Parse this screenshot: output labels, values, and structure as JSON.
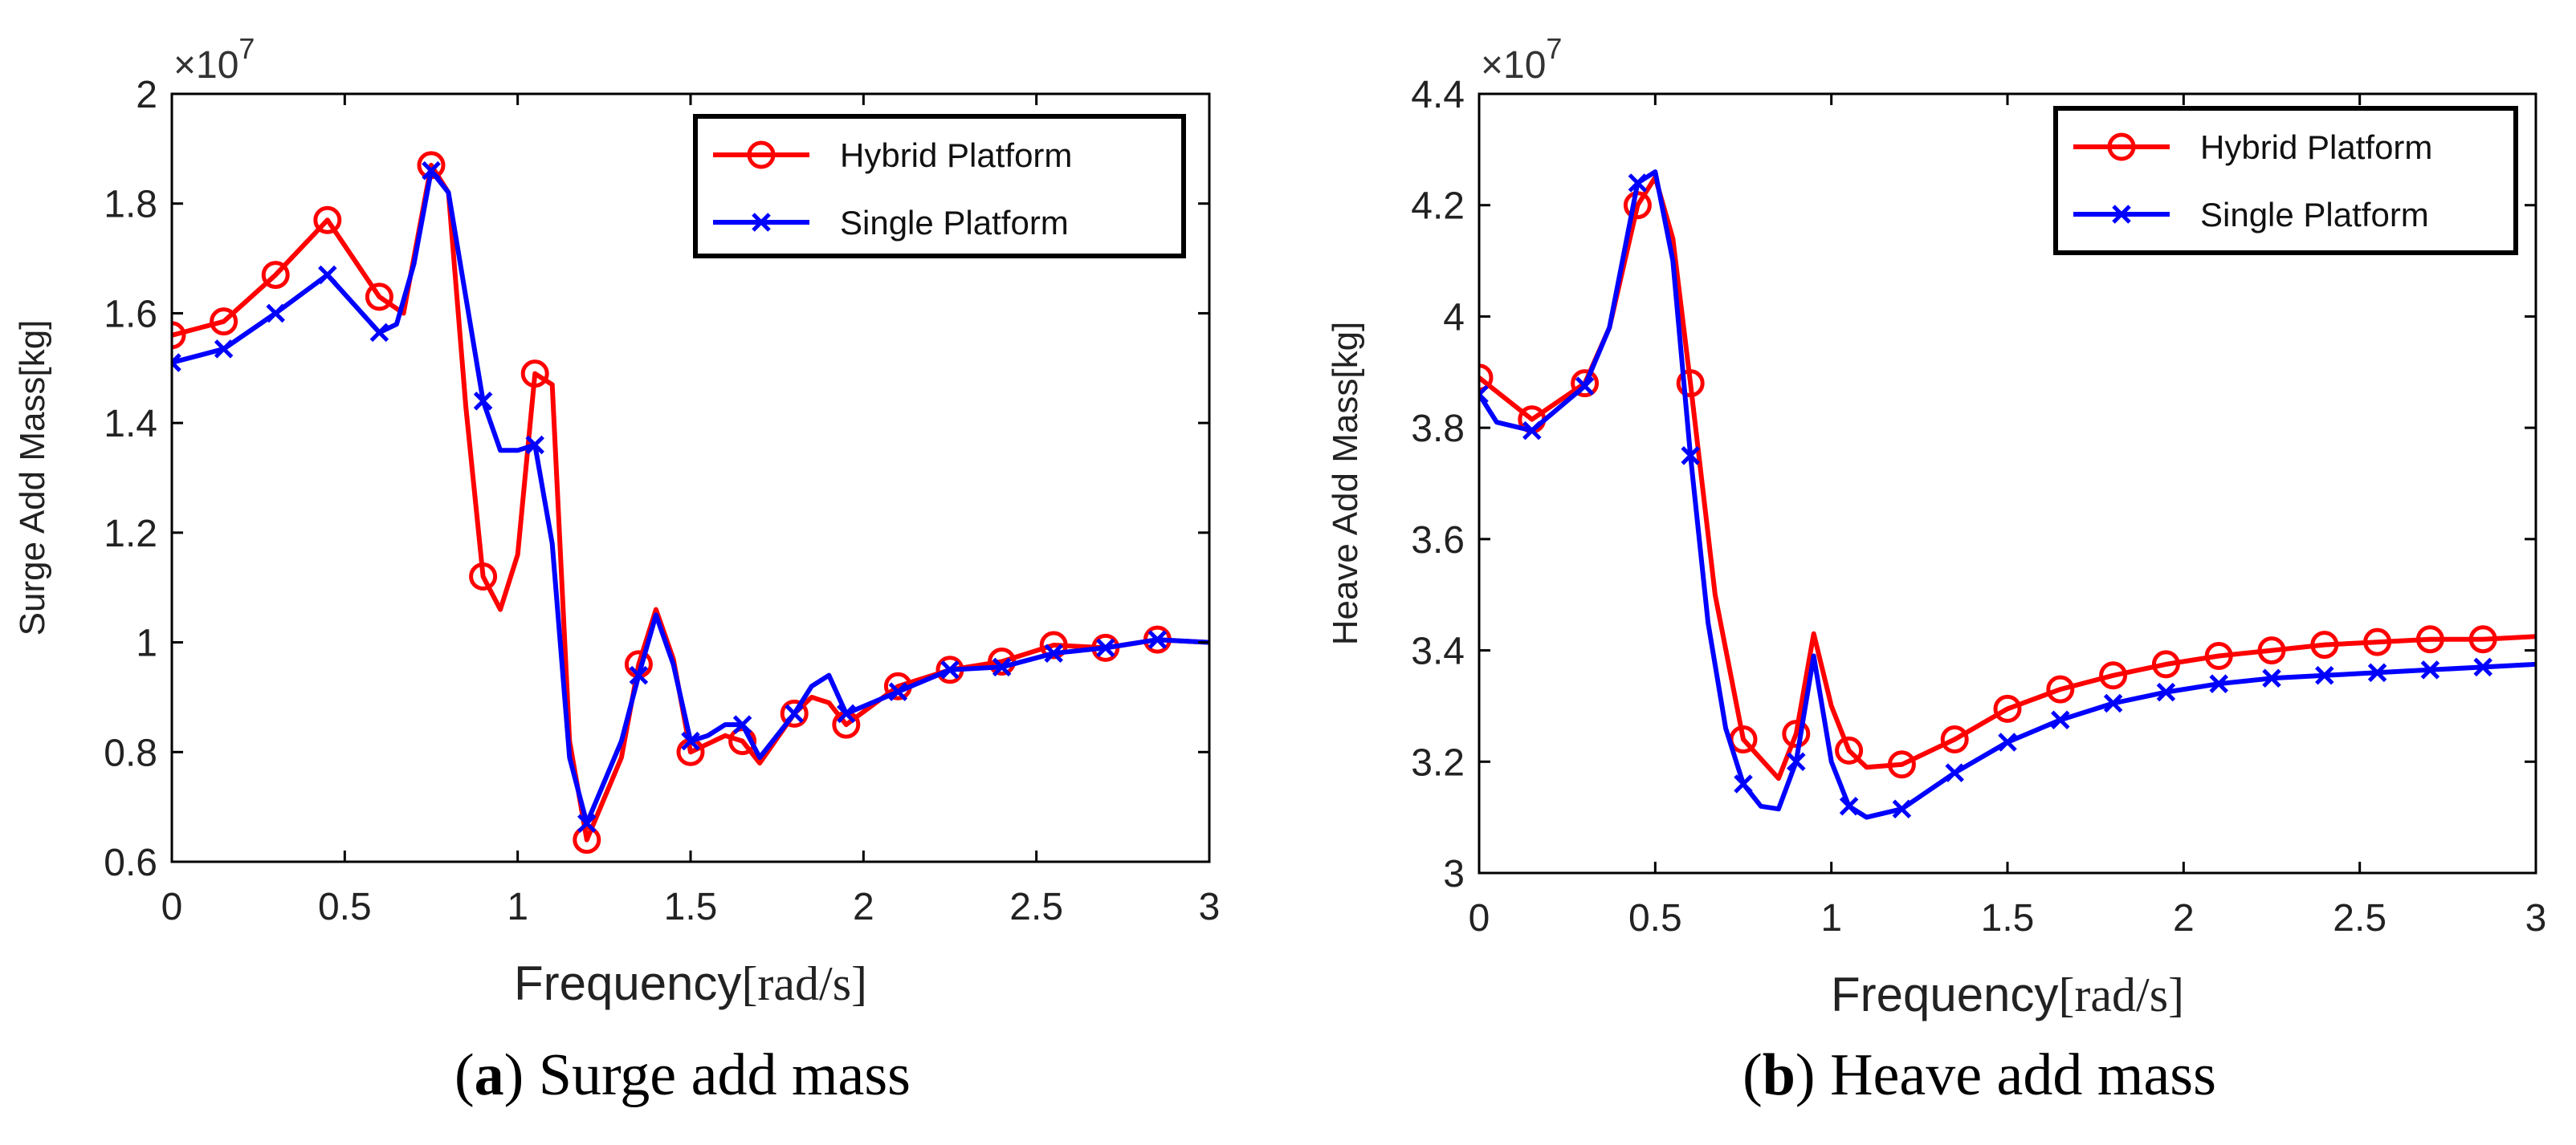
{
  "colors": {
    "hybrid": "#ff0000",
    "single": "#0000ff",
    "axis": "#000000"
  },
  "captions": [
    {
      "label": "a",
      "text": "Surge add mass",
      "open": "(",
      "close": ")"
    },
    {
      "label": "b",
      "text": "Heave add mass",
      "open": "(",
      "close": ")"
    }
  ],
  "chart_data": [
    {
      "type": "line",
      "title": "",
      "xlabel": "Frequency",
      "xlabel_unit": "[rad/s]",
      "ylabel": "Surge Add Mass[kg]",
      "exponent_base": "×10",
      "exponent_power": "7",
      "xlim": [
        0,
        3
      ],
      "ylim": [
        0.6,
        2.0
      ],
      "xticks": [
        0,
        0.5,
        1,
        1.5,
        2,
        2.5,
        3
      ],
      "xtick_labels": [
        "0",
        "0.5",
        "1",
        "1.5",
        "2",
        "2.5",
        "3"
      ],
      "yticks": [
        0.6,
        0.8,
        1.0,
        1.2,
        1.4,
        1.6,
        1.8,
        2.0
      ],
      "ytick_labels": [
        "0.6",
        "0.8",
        "1",
        "1.2",
        "1.4",
        "1.6",
        "1.8",
        "2"
      ],
      "legend_position": "top-right",
      "series": [
        {
          "name": "Hybrid Platform",
          "marker": "circle",
          "x": [
            0,
            0.15,
            0.3,
            0.45,
            0.6,
            0.67,
            0.75,
            0.8,
            0.85,
            0.9,
            0.95,
            1.0,
            1.05,
            1.1,
            1.15,
            1.2,
            1.3,
            1.35,
            1.4,
            1.45,
            1.5,
            1.6,
            1.65,
            1.7,
            1.8,
            1.85,
            1.9,
            1.95,
            2.1,
            2.25,
            2.4,
            2.55,
            2.7,
            2.85,
            3.0
          ],
          "y": [
            1.56,
            1.585,
            1.67,
            1.77,
            1.63,
            1.6,
            1.87,
            1.82,
            1.43,
            1.12,
            1.06,
            1.16,
            1.49,
            1.47,
            0.82,
            0.64,
            0.79,
            0.96,
            1.06,
            0.97,
            0.8,
            0.83,
            0.82,
            0.78,
            0.87,
            0.9,
            0.89,
            0.85,
            0.92,
            0.95,
            0.965,
            0.995,
            0.99,
            1.005,
            1.0
          ],
          "markers_x": [
            0,
            0.15,
            0.3,
            0.45,
            0.6,
            0.75,
            0.9,
            1.05,
            1.2,
            1.35,
            1.5,
            1.65,
            1.8,
            1.95,
            2.1,
            2.25,
            2.4,
            2.55,
            2.7,
            2.85
          ],
          "markers_y": [
            1.56,
            1.585,
            1.67,
            1.77,
            1.63,
            1.87,
            1.12,
            1.49,
            0.64,
            0.96,
            0.8,
            0.82,
            0.87,
            0.85,
            0.92,
            0.95,
            0.965,
            0.995,
            0.99,
            1.005
          ]
        },
        {
          "name": "Single Platform",
          "marker": "x",
          "x": [
            0,
            0.15,
            0.3,
            0.45,
            0.6,
            0.65,
            0.7,
            0.75,
            0.8,
            0.9,
            0.95,
            1.0,
            1.05,
            1.1,
            1.15,
            1.2,
            1.3,
            1.35,
            1.4,
            1.45,
            1.5,
            1.55,
            1.6,
            1.65,
            1.7,
            1.8,
            1.85,
            1.9,
            1.95,
            2.1,
            2.25,
            2.4,
            2.55,
            2.7,
            2.85,
            3.0
          ],
          "y": [
            1.51,
            1.535,
            1.6,
            1.67,
            1.565,
            1.58,
            1.69,
            1.86,
            1.82,
            1.44,
            1.35,
            1.35,
            1.36,
            1.18,
            0.79,
            0.67,
            0.82,
            0.94,
            1.05,
            0.96,
            0.82,
            0.83,
            0.85,
            0.85,
            0.79,
            0.87,
            0.92,
            0.94,
            0.87,
            0.91,
            0.95,
            0.955,
            0.98,
            0.99,
            1.005,
            1.0
          ],
          "markers_x": [
            0,
            0.15,
            0.3,
            0.45,
            0.6,
            0.75,
            0.9,
            1.05,
            1.2,
            1.35,
            1.5,
            1.65,
            1.8,
            1.95,
            2.1,
            2.25,
            2.4,
            2.55,
            2.7,
            2.85
          ],
          "markers_y": [
            1.51,
            1.535,
            1.6,
            1.67,
            1.565,
            1.86,
            1.44,
            1.36,
            0.67,
            0.94,
            0.82,
            0.85,
            0.87,
            0.87,
            0.91,
            0.95,
            0.955,
            0.98,
            0.99,
            1.005
          ]
        }
      ]
    },
    {
      "type": "line",
      "title": "",
      "xlabel": "Frequency",
      "xlabel_unit": "[rad/s]",
      "ylabel": "Heave Add Mass[kg]",
      "exponent_base": "×10",
      "exponent_power": "7",
      "xlim": [
        0,
        3
      ],
      "ylim": [
        3.0,
        4.4
      ],
      "xticks": [
        0,
        0.5,
        1,
        1.5,
        2,
        2.5,
        3
      ],
      "xtick_labels": [
        "0",
        "0.5",
        "1",
        "1.5",
        "2",
        "2.5",
        "3"
      ],
      "yticks": [
        3.0,
        3.2,
        3.4,
        3.6,
        3.8,
        4.0,
        4.2,
        4.4
      ],
      "ytick_labels": [
        "3",
        "3.2",
        "3.4",
        "3.6",
        "3.8",
        "4",
        "4.2",
        "4.4"
      ],
      "legend_position": "top-right",
      "series": [
        {
          "name": "Hybrid Platform",
          "marker": "circle",
          "x": [
            0,
            0.15,
            0.3,
            0.37,
            0.45,
            0.5,
            0.55,
            0.6,
            0.67,
            0.75,
            0.85,
            0.9,
            0.95,
            1.0,
            1.05,
            1.1,
            1.2,
            1.35,
            1.5,
            1.65,
            1.8,
            1.95,
            2.1,
            2.25,
            2.4,
            2.55,
            2.7,
            2.85,
            3.0
          ],
          "y": [
            3.89,
            3.815,
            3.88,
            3.98,
            4.2,
            4.25,
            4.14,
            3.88,
            3.5,
            3.24,
            3.17,
            3.25,
            3.43,
            3.3,
            3.22,
            3.19,
            3.195,
            3.24,
            3.295,
            3.33,
            3.355,
            3.375,
            3.39,
            3.4,
            3.41,
            3.415,
            3.42,
            3.42,
            3.425
          ],
          "markers_x": [
            0,
            0.15,
            0.3,
            0.45,
            0.6,
            0.75,
            0.9,
            1.05,
            1.2,
            1.35,
            1.5,
            1.65,
            1.8,
            1.95,
            2.1,
            2.25,
            2.4,
            2.55,
            2.7,
            2.85
          ],
          "markers_y": [
            3.89,
            3.815,
            3.88,
            4.2,
            3.88,
            3.24,
            3.25,
            3.22,
            3.195,
            3.24,
            3.295,
            3.33,
            3.355,
            3.375,
            3.39,
            3.4,
            3.41,
            3.415,
            3.42,
            3.42
          ]
        },
        {
          "name": "Single Platform",
          "marker": "x",
          "x": [
            0,
            0.05,
            0.15,
            0.3,
            0.37,
            0.45,
            0.5,
            0.55,
            0.6,
            0.65,
            0.7,
            0.75,
            0.8,
            0.85,
            0.9,
            0.95,
            1.0,
            1.05,
            1.1,
            1.2,
            1.35,
            1.5,
            1.65,
            1.8,
            1.95,
            2.1,
            2.25,
            2.4,
            2.55,
            2.7,
            2.85,
            3.0
          ],
          "y": [
            3.86,
            3.81,
            3.795,
            3.875,
            3.98,
            4.24,
            4.26,
            4.1,
            3.75,
            3.45,
            3.26,
            3.16,
            3.12,
            3.115,
            3.2,
            3.39,
            3.2,
            3.12,
            3.1,
            3.115,
            3.18,
            3.235,
            3.275,
            3.305,
            3.325,
            3.34,
            3.35,
            3.355,
            3.36,
            3.365,
            3.37,
            3.375
          ],
          "markers_x": [
            0,
            0.15,
            0.3,
            0.45,
            0.6,
            0.75,
            0.9,
            1.05,
            1.2,
            1.35,
            1.5,
            1.65,
            1.8,
            1.95,
            2.1,
            2.25,
            2.4,
            2.55,
            2.7,
            2.85
          ],
          "markers_y": [
            3.86,
            3.795,
            3.875,
            4.24,
            3.75,
            3.16,
            3.2,
            3.12,
            3.115,
            3.18,
            3.235,
            3.275,
            3.305,
            3.325,
            3.34,
            3.35,
            3.355,
            3.36,
            3.365,
            3.37
          ]
        }
      ]
    }
  ]
}
